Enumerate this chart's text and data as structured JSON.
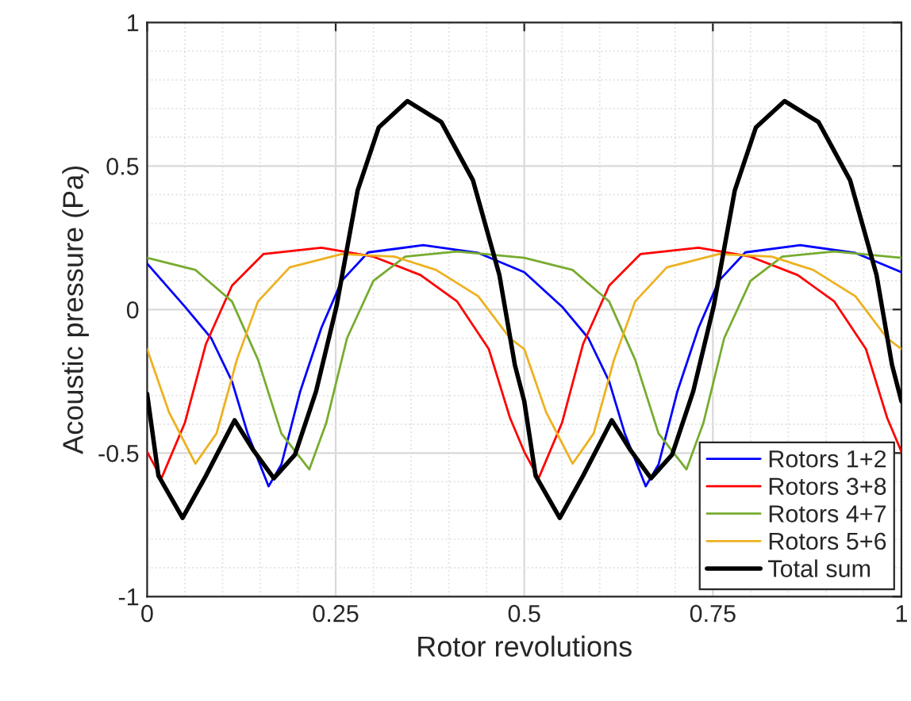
{
  "chart_data": {
    "type": "line",
    "xlabel": "Rotor revolutions",
    "ylabel": "Acoustic pressure (Pa)",
    "xlim": [
      0,
      1
    ],
    "ylim": [
      -1,
      1
    ],
    "xticks": [
      0,
      0.25,
      0.5,
      0.75,
      1
    ],
    "yticks": [
      -1,
      -0.5,
      0,
      0.5,
      1
    ],
    "grid": true,
    "legend": "bottom right",
    "line_style": "solid",
    "marker": "none",
    "series": [
      {
        "name": "Rotors 1+2",
        "color": "#0000ff",
        "x": [
          0,
          0.05,
          0.085,
          0.1125,
          0.133,
          0.161,
          0.178,
          0.203,
          0.231,
          0.258,
          0.293,
          0.366,
          0.439,
          0.5,
          0.55,
          0.585,
          0.6125,
          0.633,
          0.661,
          0.678,
          0.703,
          0.731,
          0.758,
          0.793,
          0.866,
          0.939,
          1
        ],
        "values": [
          0.16,
          0.01,
          -0.1,
          -0.25,
          -0.43,
          -0.616,
          -0.54,
          -0.285,
          -0.064,
          0.1,
          0.199,
          0.224,
          0.197,
          0.13,
          0.01,
          -0.1,
          -0.25,
          -0.43,
          -0.616,
          -0.54,
          -0.285,
          -0.064,
          0.1,
          0.199,
          0.224,
          0.197,
          0.13
        ]
      },
      {
        "name": "Rotors 3+8",
        "color": "#ff0000",
        "x": [
          0,
          0.019,
          0.05,
          0.078,
          0.1125,
          0.154,
          0.231,
          0.3,
          0.3625,
          0.411,
          0.453,
          0.481,
          0.5,
          0.519,
          0.55,
          0.578,
          0.6125,
          0.654,
          0.731,
          0.8,
          0.8625,
          0.911,
          0.953,
          0.981,
          1
        ],
        "values": [
          -0.496,
          -0.588,
          -0.395,
          -0.12,
          0.083,
          0.193,
          0.215,
          0.184,
          0.12,
          0.028,
          -0.138,
          -0.377,
          -0.496,
          -0.588,
          -0.395,
          -0.12,
          0.083,
          0.193,
          0.215,
          0.184,
          0.12,
          0.028,
          -0.138,
          -0.377,
          -0.496
        ]
      },
      {
        "name": "Rotors 4+7",
        "color": "#77ac30",
        "x": [
          0,
          0.064,
          0.1125,
          0.147,
          0.178,
          0.215,
          0.2375,
          0.265,
          0.3,
          0.342,
          0.411,
          0.5,
          0.564,
          0.6125,
          0.647,
          0.678,
          0.715,
          0.7375,
          0.765,
          0.8,
          0.842,
          0.911,
          1
        ],
        "values": [
          0.18,
          0.138,
          0.028,
          -0.175,
          -0.432,
          -0.557,
          -0.395,
          -0.1,
          0.1,
          0.184,
          0.202,
          0.18,
          0.138,
          0.028,
          -0.175,
          -0.432,
          -0.557,
          -0.395,
          -0.1,
          0.1,
          0.184,
          0.202,
          0.18
        ]
      },
      {
        "name": "Rotors 5+6",
        "color": "#edb120",
        "x": [
          0,
          0.029,
          0.064,
          0.092,
          0.119,
          0.147,
          0.189,
          0.258,
          0.328,
          0.383,
          0.439,
          0.481,
          0.5,
          0.529,
          0.564,
          0.592,
          0.619,
          0.647,
          0.689,
          0.758,
          0.828,
          0.883,
          0.939,
          0.981,
          1
        ],
        "values": [
          -0.138,
          -0.358,
          -0.537,
          -0.432,
          -0.175,
          0.028,
          0.147,
          0.193,
          0.184,
          0.138,
          0.046,
          -0.1,
          -0.138,
          -0.358,
          -0.537,
          -0.432,
          -0.175,
          0.028,
          0.147,
          0.193,
          0.184,
          0.138,
          0.046,
          -0.1,
          -0.138
        ]
      },
      {
        "name": "Total sum",
        "color": "#000000",
        "x": [
          0,
          0.015,
          0.047,
          0.078,
          0.116,
          0.14,
          0.168,
          0.196,
          0.224,
          0.251,
          0.279,
          0.307,
          0.345,
          0.39,
          0.432,
          0.467,
          0.4875,
          0.5,
          0.515,
          0.547,
          0.578,
          0.616,
          0.64,
          0.668,
          0.696,
          0.724,
          0.751,
          0.779,
          0.807,
          0.845,
          0.89,
          0.932,
          0.967,
          0.9875,
          1
        ],
        "values": [
          -0.294,
          -0.579,
          -0.726,
          -0.579,
          -0.386,
          -0.487,
          -0.588,
          -0.506,
          -0.285,
          0.01,
          0.414,
          0.634,
          0.726,
          0.653,
          0.45,
          0.12,
          -0.193,
          -0.32,
          -0.579,
          -0.726,
          -0.579,
          -0.386,
          -0.487,
          -0.588,
          -0.506,
          -0.285,
          0.01,
          0.414,
          0.634,
          0.726,
          0.653,
          0.45,
          0.12,
          -0.193,
          -0.32
        ]
      }
    ]
  }
}
